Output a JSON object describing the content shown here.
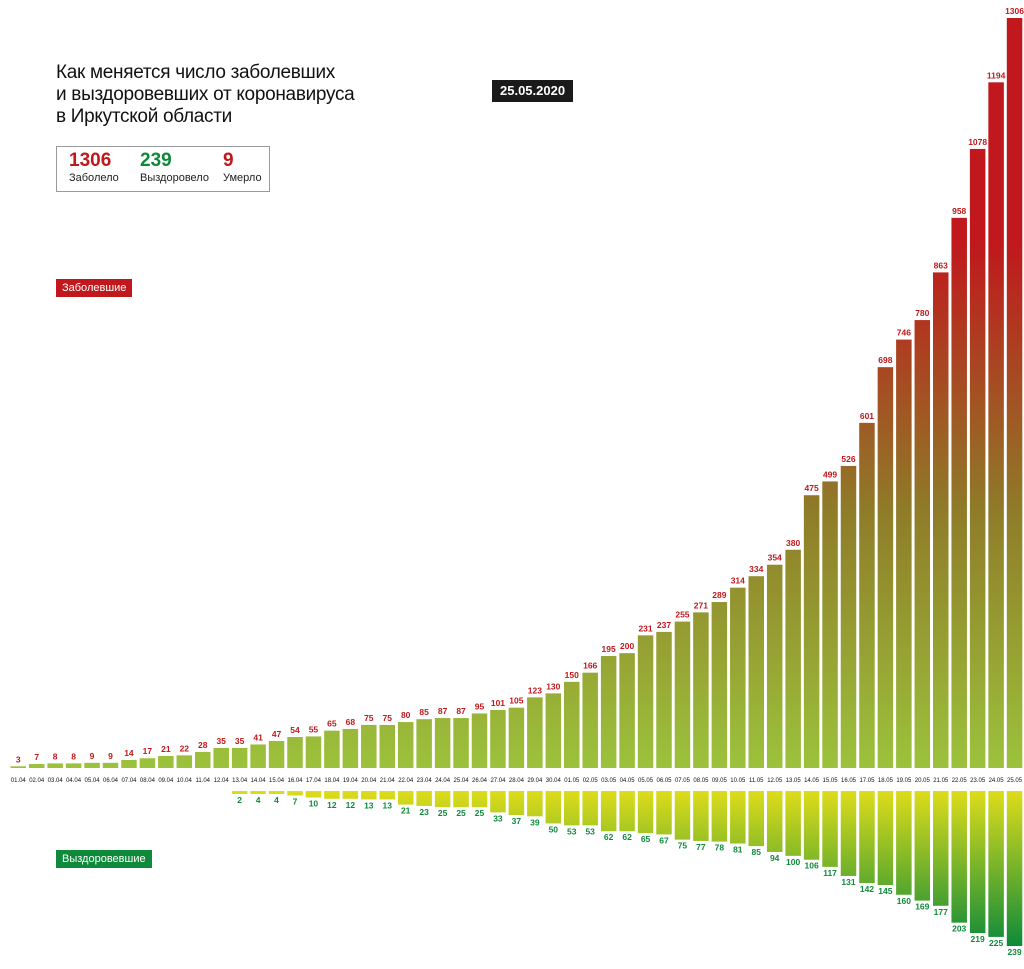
{
  "title_lines": [
    "Как меняется число заболевших",
    "и выздоровевших от коронавируса",
    "в Иркутской области"
  ],
  "date": "25.05.2020",
  "stats": {
    "cases_value": "1306",
    "cases_label": "Заболело",
    "recovered_value": "239",
    "recovered_label": "Выздоровело",
    "deaths_value": "9",
    "deaths_label": "Умерло"
  },
  "legend": {
    "cases_tag": "Заболевшие",
    "recovered_tag": "Выздоровевшие"
  },
  "colors": {
    "cases_dark": "#c0181c",
    "cases_mid": "#8f7a28",
    "cases_light": "#9cc23c",
    "recovered_dark": "#0e8a3a",
    "recovered_light": "#dedc1a",
    "text_dark": "#111111",
    "badge_bg": "#1a1a1a"
  },
  "chart_data": {
    "type": "bar",
    "title": "Как меняется число заболевших и выздоровевших от коронавируса в Иркутской области",
    "categories": [
      "01.04",
      "02.04",
      "03.04",
      "04.04",
      "05.04",
      "06.04",
      "07.04",
      "08.04",
      "09.04",
      "10.04",
      "11.04",
      "12.04",
      "13.04",
      "14.04",
      "15.04",
      "16.04",
      "17.04",
      "18.04",
      "19.04",
      "20.04",
      "21.04",
      "22.04",
      "23.04",
      "24.04",
      "25.04",
      "26.04",
      "27.04",
      "28.04",
      "29.04",
      "30.04",
      "01.05",
      "02.05",
      "03.05",
      "04.05",
      "05.05",
      "06.05",
      "07.05",
      "08.05",
      "09.05",
      "10.05",
      "11.05",
      "12.05",
      "13.05",
      "14.05",
      "15.05",
      "16.05",
      "17.05",
      "18.05",
      "19.05",
      "20.05",
      "21.05",
      "22.05",
      "23.05",
      "24.05",
      "25.05"
    ],
    "series": [
      {
        "name": "Заболевшие",
        "direction": "up",
        "values": [
          3,
          7,
          8,
          8,
          9,
          9,
          14,
          17,
          21,
          22,
          28,
          35,
          35,
          41,
          47,
          54,
          55,
          65,
          68,
          75,
          75,
          80,
          85,
          87,
          87,
          95,
          101,
          105,
          123,
          130,
          150,
          166,
          195,
          200,
          231,
          237,
          255,
          271,
          289,
          314,
          334,
          354,
          380,
          475,
          499,
          526,
          601,
          698,
          746,
          780,
          863,
          958,
          1078,
          1194,
          1306
        ]
      },
      {
        "name": "Выздоровевшие",
        "direction": "down",
        "values": [
          0,
          0,
          0,
          0,
          0,
          0,
          0,
          0,
          0,
          0,
          0,
          0,
          2,
          4,
          4,
          7,
          10,
          12,
          12,
          13,
          13,
          21,
          23,
          25,
          25,
          25,
          33,
          37,
          39,
          50,
          53,
          53,
          62,
          62,
          65,
          67,
          75,
          77,
          78,
          81,
          85,
          94,
          100,
          106,
          117,
          131,
          142,
          145,
          160,
          169,
          177,
          203,
          219,
          225,
          239
        ]
      }
    ],
    "ylim_up": [
      0,
      1306
    ],
    "ylim_down": [
      0,
      239
    ]
  }
}
